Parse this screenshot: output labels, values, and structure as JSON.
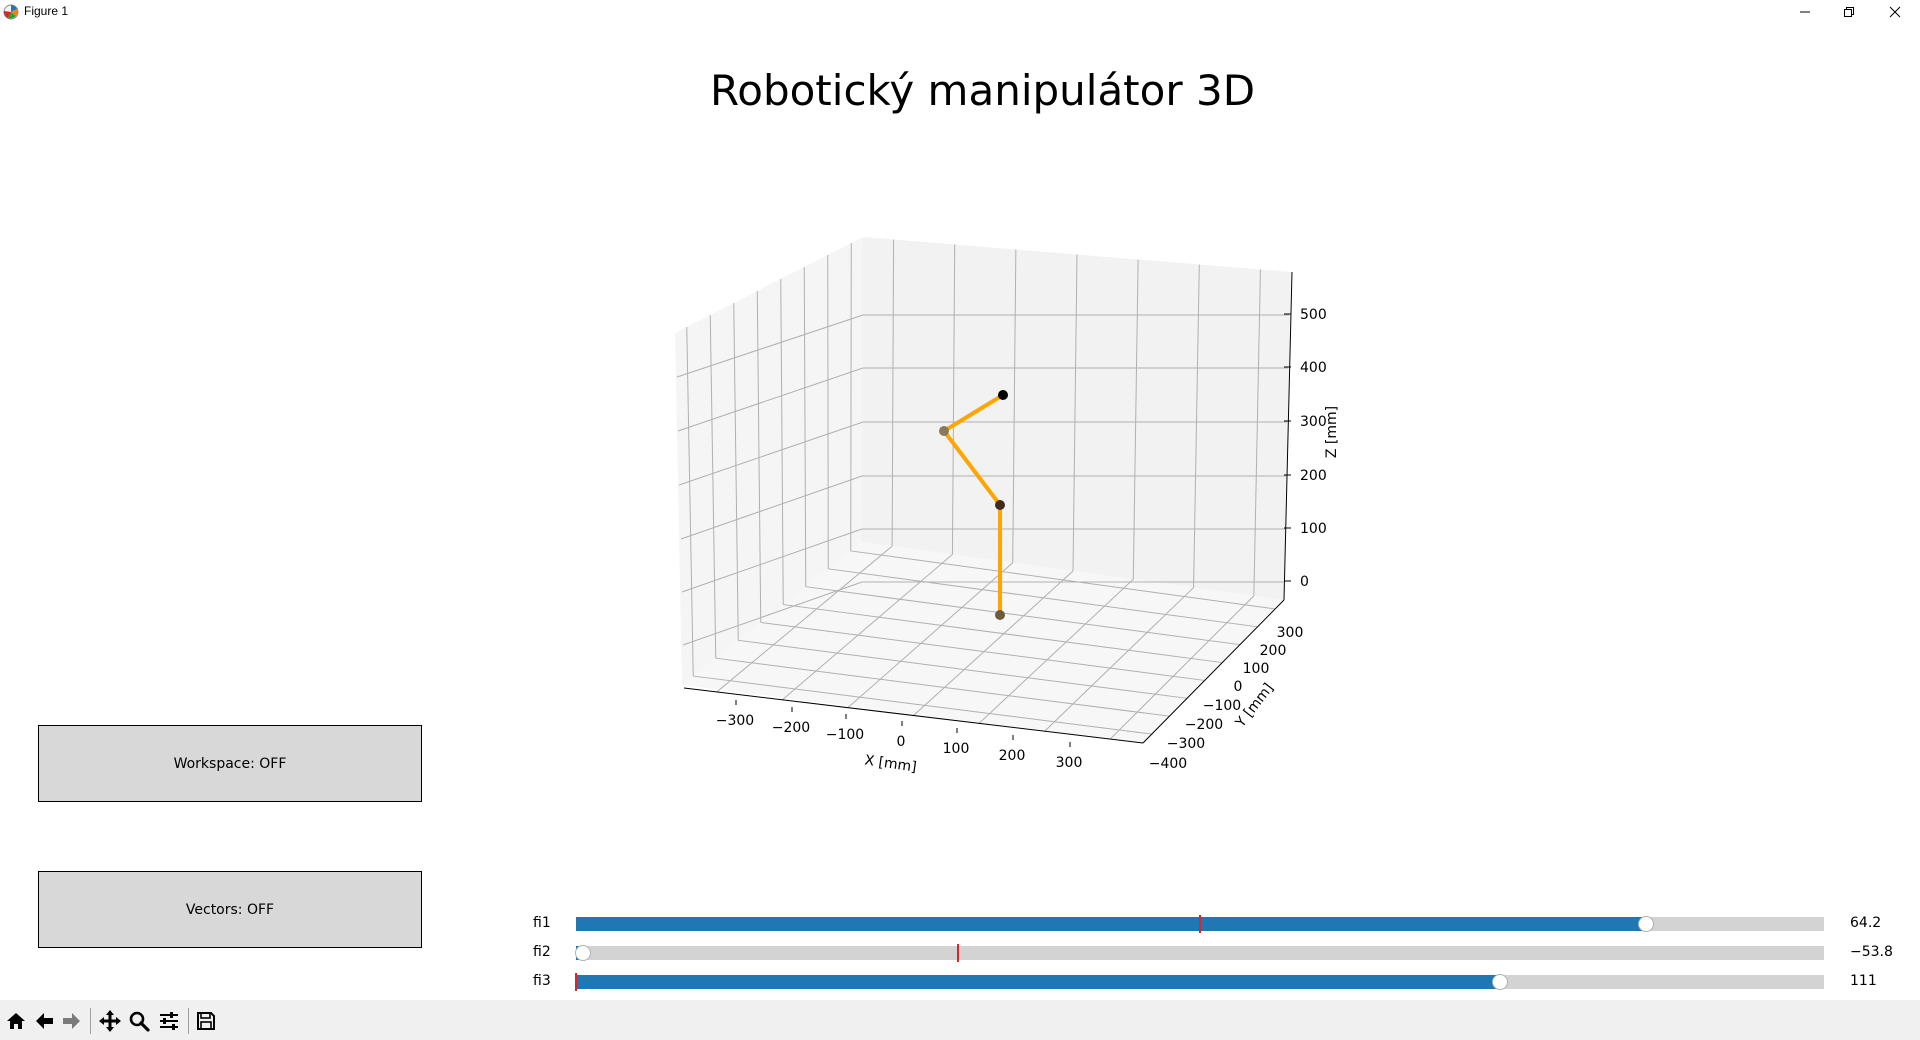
{
  "window": {
    "title": "Figure 1",
    "icon": "matplotlib-logo-icon",
    "controls": [
      "minimize-icon",
      "restore-icon",
      "close-icon"
    ]
  },
  "figure": {
    "title": "Robotický manipulátor 3D"
  },
  "chart_data": {
    "type": "line3d",
    "title": "Robotický manipulátor 3D",
    "xlabel": "X [mm]",
    "ylabel": "Y [mm]",
    "zlabel": "Z [mm]",
    "xticks": [
      "−300",
      "−200",
      "−100",
      "0",
      "100",
      "200",
      "300"
    ],
    "yticks": [
      "−400",
      "−300",
      "−200",
      "−100",
      "0",
      "100",
      "200",
      "300"
    ],
    "zticks": [
      "0",
      "100",
      "200",
      "300",
      "400",
      "500"
    ],
    "grid": true,
    "line_color": "#ffa500",
    "joint_colors": [
      "#6e5a3c",
      "#3e2d1e",
      "#8a7a5a",
      "#000000"
    ]
  },
  "buttons": {
    "workspace": "Workspace: OFF",
    "vectors": "Vectors: OFF"
  },
  "sliders": [
    {
      "label": "fi1",
      "value": "64.2",
      "fill": 0.857,
      "init": 0.5
    },
    {
      "label": "fi2",
      "value": "−53.8",
      "fill": 0.006,
      "init": 0.306
    },
    {
      "label": "fi3",
      "value": "111",
      "fill": 0.74,
      "init": 0.0
    }
  ],
  "colors": {
    "slider_fill": "#1f77b4",
    "slider_track": "#d3d3d3",
    "slider_init": "#d62728",
    "button_bg": "#d8d8d8"
  },
  "toolbar": {
    "tools": [
      "home-icon",
      "back-icon",
      "forward-icon",
      "pan-icon",
      "zoom-icon",
      "configure-subplots-icon",
      "save-icon"
    ]
  }
}
